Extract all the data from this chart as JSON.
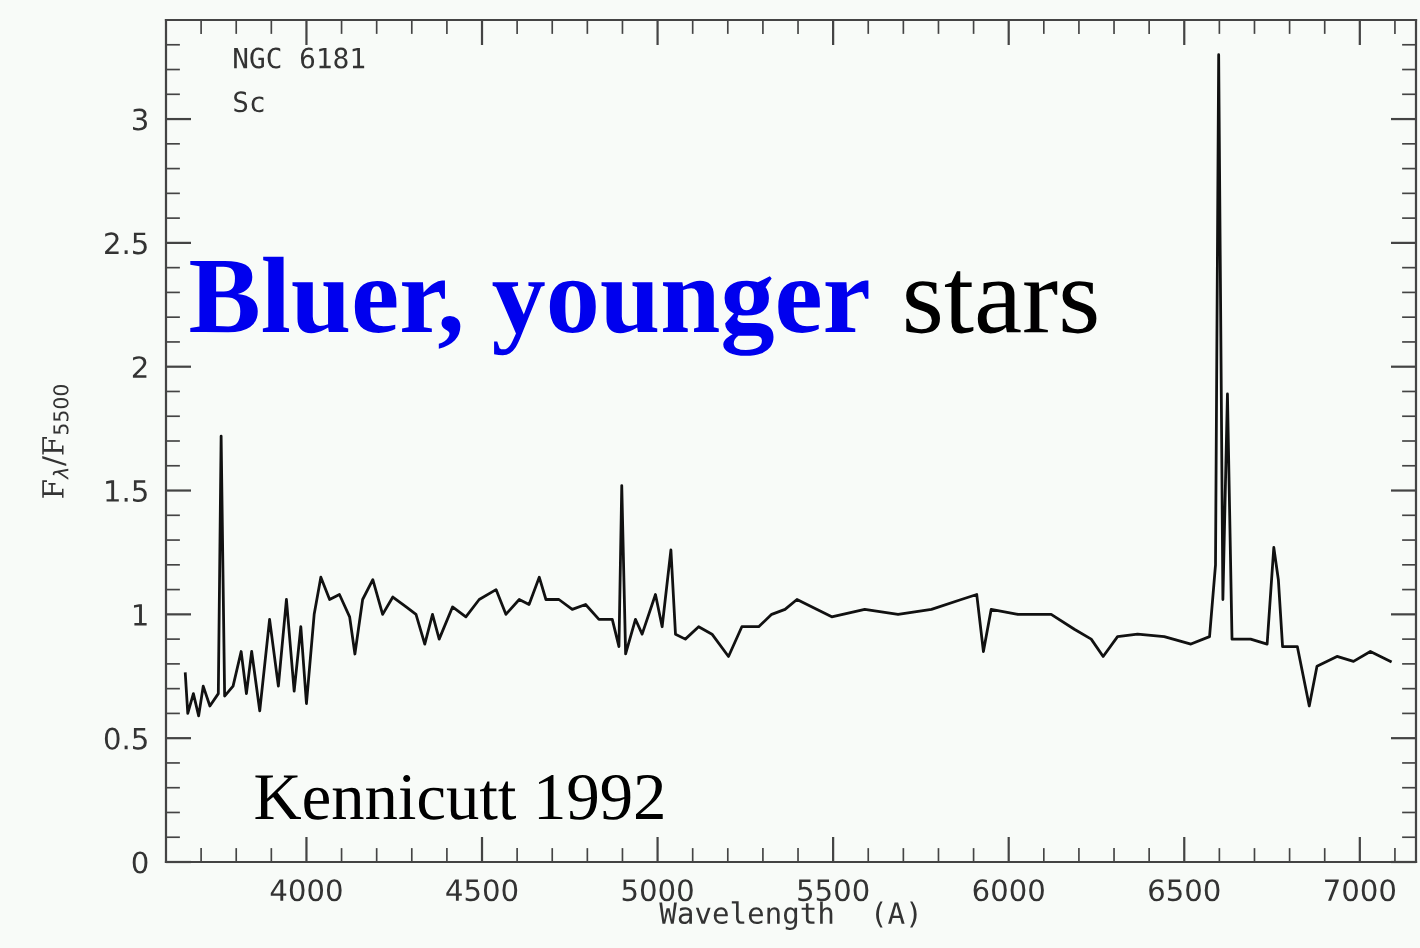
{
  "chart_data": {
    "type": "line",
    "xlabel": "Wavelength  (A)",
    "ylabel": "F$_{λ}$/F$_{5500}$",
    "annotations": [
      "NGC 6181",
      "Sc",
      "Bluer, younger",
      "stars",
      "Kennicutt 1992"
    ],
    "xlim": [
      3600,
      7160
    ],
    "ylim": [
      0,
      3.4
    ],
    "xticks": [
      {
        "value": 3700,
        "label": null
      },
      {
        "value": 3800,
        "label": null
      },
      {
        "value": 3900,
        "label": null
      },
      4000,
      {
        "value": 4100,
        "label": null
      },
      {
        "value": 4200,
        "label": null
      },
      {
        "value": 4300,
        "label": null
      },
      {
        "value": 4400,
        "label": null
      },
      4500,
      {
        "value": 4600,
        "label": null
      },
      {
        "value": 4700,
        "label": null
      },
      {
        "value": 4800,
        "label": null
      },
      {
        "value": 4900,
        "label": null
      },
      5000,
      {
        "value": 5100,
        "label": null
      },
      {
        "value": 5200,
        "label": null
      },
      {
        "value": 5300,
        "label": null
      },
      {
        "value": 5400,
        "label": null
      },
      5500,
      {
        "value": 5600,
        "label": null
      },
      {
        "value": 5700,
        "label": null
      },
      {
        "value": 5800,
        "label": null
      },
      {
        "value": 5900,
        "label": null
      },
      6000,
      {
        "value": 6100,
        "label": null
      },
      {
        "value": 6200,
        "label": null
      },
      {
        "value": 6300,
        "label": null
      },
      {
        "value": 6400,
        "label": null
      },
      6500,
      {
        "value": 6600,
        "label": null
      },
      {
        "value": 6700,
        "label": null
      },
      {
        "value": 6800,
        "label": null
      },
      {
        "value": 6900,
        "label": null
      },
      7000,
      {
        "value": 7100,
        "label": null
      }
    ],
    "yticks": [
      0,
      {
        "value": 0.1,
        "label": null
      },
      {
        "value": 0.2,
        "label": null
      },
      {
        "value": 0.3,
        "label": null
      },
      {
        "value": 0.4,
        "label": null
      },
      0.5,
      {
        "value": 0.6,
        "label": null
      },
      {
        "value": 0.7,
        "label": null
      },
      {
        "value": 0.8,
        "label": null
      },
      {
        "value": 0.9,
        "label": null
      },
      1,
      {
        "value": 1.1,
        "label": null
      },
      {
        "value": 1.2,
        "label": null
      },
      {
        "value": 1.3,
        "label": null
      },
      {
        "value": 1.4,
        "label": null
      },
      1.5,
      {
        "value": 1.6,
        "label": null
      },
      {
        "value": 1.7,
        "label": null
      },
      {
        "value": 1.8,
        "label": null
      },
      {
        "value": 1.9,
        "label": null
      },
      2,
      {
        "value": 2.1,
        "label": null
      },
      {
        "value": 2.2,
        "label": null
      },
      {
        "value": 2.3,
        "label": null
      },
      {
        "value": 2.4,
        "label": null
      },
      2.5,
      {
        "value": 2.6,
        "label": null
      },
      {
        "value": 2.7,
        "label": null
      },
      {
        "value": 2.8,
        "label": null
      },
      {
        "value": 2.9,
        "label": null
      },
      3,
      {
        "value": 3.1,
        "label": null
      },
      {
        "value": 3.2,
        "label": null
      },
      {
        "value": 3.3,
        "label": null
      }
    ],
    "grid": false,
    "legend": false,
    "marker": "none",
    "line_style": "solid",
    "series": [
      {
        "color": "#111111",
        "x": [
          3655,
          3662,
          3678,
          3693,
          3706,
          3725,
          3749,
          3757,
          3767,
          3791,
          3814,
          3829,
          3844,
          3867,
          3895,
          3920,
          3943,
          3965,
          3984,
          4000,
          4022,
          4041,
          4066,
          4094,
          4123,
          4138,
          4160,
          4189,
          4217,
          4246,
          4284,
          4312,
          4337,
          4359,
          4378,
          4416,
          4454,
          4492,
          4540,
          4568,
          4606,
          4634,
          4663,
          4682,
          4719,
          4757,
          4795,
          4833,
          4871,
          4890,
          4898,
          4909,
          4937,
          4956,
          4994,
          5013,
          5038,
          5051,
          5079,
          5117,
          5155,
          5202,
          5240,
          5288,
          5325,
          5363,
          5397,
          5496,
          5590,
          5685,
          5780,
          5865,
          5909,
          5928,
          5950,
          6026,
          6121,
          6187,
          6235,
          6269,
          6310,
          6367,
          6443,
          6519,
          6572,
          6589,
          6598,
          6610,
          6623,
          6636,
          6689,
          6736,
          6755,
          6768,
          6780,
          6822,
          6856,
          6878,
          6935,
          6982,
          7030,
          7087
        ],
        "values": [
          0.76,
          0.6,
          0.68,
          0.59,
          0.71,
          0.63,
          0.68,
          1.72,
          0.67,
          0.71,
          0.85,
          0.68,
          0.85,
          0.61,
          0.98,
          0.71,
          1.06,
          0.69,
          0.95,
          0.64,
          1.0,
          1.15,
          1.06,
          1.08,
          0.99,
          0.84,
          1.06,
          1.14,
          1.0,
          1.07,
          1.03,
          1.0,
          0.88,
          1.0,
          0.9,
          1.03,
          0.99,
          1.06,
          1.1,
          1.0,
          1.06,
          1.04,
          1.15,
          1.06,
          1.06,
          1.02,
          1.04,
          0.98,
          0.98,
          0.87,
          1.52,
          0.84,
          0.98,
          0.92,
          1.08,
          0.95,
          1.26,
          0.92,
          0.9,
          0.95,
          0.92,
          0.83,
          0.95,
          0.95,
          1.0,
          1.02,
          1.06,
          0.99,
          1.02,
          1.0,
          1.02,
          1.06,
          1.08,
          0.85,
          1.02,
          1.0,
          1.0,
          0.94,
          0.9,
          0.83,
          0.91,
          0.92,
          0.91,
          0.88,
          0.91,
          1.2,
          3.26,
          1.06,
          1.89,
          0.9,
          0.9,
          0.88,
          1.27,
          1.14,
          0.87,
          0.87,
          0.63,
          0.79,
          0.83,
          0.81,
          0.85,
          0.81
        ]
      }
    ]
  }
}
